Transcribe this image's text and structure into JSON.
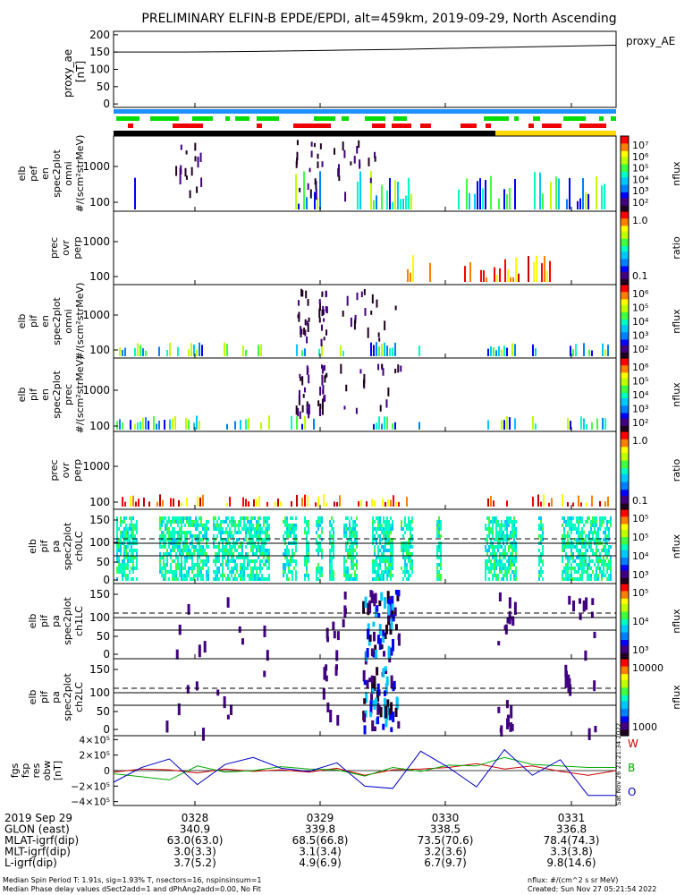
{
  "title": "PRELIMINARY ELFIN-B EPDE/EPDI, alt=459km, 2019-09-29, North Ascending",
  "chart_data": [
    {
      "type": "line",
      "name": "proxy_ae",
      "ylabel": "proxy_ae\n[nT]",
      "series": [
        {
          "name": "proxy_AE",
          "x_minutes": [
            0,
            5,
            10,
            15,
            20,
            25,
            30,
            35
          ],
          "values": [
            150,
            150,
            152,
            155,
            158,
            162,
            166,
            170
          ]
        }
      ],
      "ylim": [
        -10,
        210
      ],
      "ytick_labels": [
        "200",
        "150",
        "100",
        "50",
        "0"
      ],
      "legend": "proxy_AE"
    },
    {
      "type": "heatmap",
      "name": "elb_pef_en_spec2plot_omni",
      "ylabel": [
        "elb",
        "pef",
        "en",
        "spec2plot",
        "omni",
        "#/(scm²strMeV)"
      ],
      "ytick_labels": [
        "1000",
        "100"
      ],
      "colorbar": {
        "label": "nflux",
        "ticks": [
          "10⁷",
          "10⁶",
          "10⁵",
          "10⁴",
          "10³",
          "10²"
        ]
      }
    },
    {
      "type": "heatmap",
      "name": "prec_ovr_perp_1",
      "ylabel": [
        "prec",
        "ovr",
        "perp"
      ],
      "ytick_labels": [
        "1000",
        "100"
      ],
      "colorbar": {
        "label": "ratio",
        "ticks": [
          "1.0",
          "0.1"
        ]
      }
    },
    {
      "type": "heatmap",
      "name": "elb_pif_en_spec2plot_omni",
      "ylabel": [
        "elb",
        "pif",
        "en",
        "spec2plot",
        "omni",
        "#/(scm²strMeV)"
      ],
      "ytick_labels": [
        "1000",
        "100"
      ],
      "colorbar": {
        "label": "nflux",
        "ticks": [
          "10⁶",
          "10⁵",
          "10⁴",
          "10³",
          "10²"
        ]
      }
    },
    {
      "type": "heatmap",
      "name": "elb_pif_en_spec2plot_prec",
      "ylabel": [
        "elb",
        "pif",
        "en",
        "spec2plot",
        "prec",
        "#/(scm²strMeV)"
      ],
      "ytick_labels": [
        "1000",
        "100"
      ],
      "colorbar": {
        "label": "nflux",
        "ticks": [
          "10⁶",
          "10⁵",
          "10⁴",
          "10³",
          "10²"
        ]
      }
    },
    {
      "type": "heatmap",
      "name": "prec_ovr_perp_2",
      "ylabel": [
        "prec",
        "ovr",
        "perp"
      ],
      "ytick_labels": [
        "1000",
        "100"
      ],
      "colorbar": {
        "label": "ratio",
        "ticks": [
          "1.0",
          "0.1"
        ]
      }
    },
    {
      "type": "heatmap",
      "name": "elb_pif_pa_spec2plot_ch0LC",
      "ylabel": [
        "elb",
        "pif",
        "pa",
        "spec2plot",
        "ch0LC"
      ],
      "ytick_labels": [
        "150",
        "100",
        "50",
        "0"
      ],
      "colorbar": {
        "label": "nflux",
        "ticks": [
          "10⁵",
          "10⁵",
          "10⁴",
          "10³"
        ]
      }
    },
    {
      "type": "heatmap",
      "name": "elb_pif_pa_spec2plot_ch1LC",
      "ylabel": [
        "elb",
        "pif",
        "pa",
        "spec2plot",
        "ch1LC"
      ],
      "ytick_labels": [
        "150",
        "100",
        "50",
        "0"
      ],
      "colorbar": {
        "label": "nflux",
        "ticks": [
          "10⁵",
          "10⁴",
          "10³"
        ]
      }
    },
    {
      "type": "heatmap",
      "name": "elb_pif_pa_spec2plot_ch2LC",
      "ylabel": [
        "elb",
        "pif",
        "pa",
        "spec2plot",
        "ch2LC"
      ],
      "ytick_labels": [
        "150",
        "100",
        "50",
        "0"
      ],
      "colorbar": {
        "label": "nflux",
        "ticks": [
          "10000",
          "1000"
        ]
      }
    },
    {
      "type": "line",
      "name": "fgs_fsp_res_obw",
      "ylabel": [
        "fgs",
        "fsp",
        "res",
        "obw",
        "[nT]"
      ],
      "ytick_labels": [
        "4×10⁵",
        "2×10⁵",
        "0",
        "−2×10⁵",
        "−4×10⁵"
      ],
      "ylim": [
        -450000,
        450000
      ],
      "legend": [
        "W",
        "B",
        "O"
      ],
      "series_colors": [
        "#cc0000",
        "#00aa00",
        "#0000cc"
      ],
      "series": [
        {
          "name": "W",
          "values": [
            -20000,
            20000,
            10000,
            -30000,
            20000,
            -10000,
            10000,
            -20000,
            30000,
            -60000,
            10000,
            20000,
            40000,
            90000,
            20000,
            60000,
            -10000,
            -60000,
            0
          ]
        },
        {
          "name": "B",
          "values": [
            -40000,
            -80000,
            -120000,
            60000,
            -20000,
            0,
            50000,
            20000,
            10000,
            -70000,
            40000,
            -10000,
            70000,
            60000,
            170000,
            80000,
            60000,
            40000,
            40000
          ]
        },
        {
          "name": "O",
          "values": [
            -150000,
            40000,
            150000,
            -180000,
            80000,
            170000,
            30000,
            -10000,
            100000,
            -200000,
            -230000,
            250000,
            40000,
            -210000,
            270000,
            -60000,
            140000,
            -320000,
            -320000
          ]
        }
      ]
    }
  ],
  "timebar": {
    "label": "",
    "colors": [
      "#1e90ff",
      "#00dd00",
      "#ee0000",
      "#000000",
      "#ffd700"
    ]
  },
  "stamp": "Sat Nov 26 21:21:34 2022",
  "xaxis": {
    "ticks": [
      "0328",
      "0329",
      "0330",
      "0331"
    ],
    "rows": [
      {
        "label": "2019 Sep 29",
        "values": [
          "0328",
          "0329",
          "0330",
          "0331"
        ]
      },
      {
        "label": "GLON (east)",
        "values": [
          "340.9",
          "339.8",
          "338.5",
          "336.8"
        ]
      },
      {
        "label": "MLAT-igrf(dip)",
        "values": [
          "63.0(63.0)",
          "68.5(66.8)",
          "73.5(70.6)",
          "78.4(74.3)"
        ]
      },
      {
        "label": "MLT-igrf(dip)",
        "values": [
          "3.0(3.3)",
          "3.1(3.4)",
          "3.2(3.6)",
          "3.3(3.8)"
        ]
      },
      {
        "label": "L-igrf(dip)",
        "values": [
          "3.7(5.2)",
          "4.9(6.9)",
          "6.7(9.7)",
          "9.8(14.6)"
        ]
      }
    ]
  },
  "footer": {
    "line1": "Median Spin Period T: 1.91s, sig=1.93% T, nsectors=16, nspinsinsum=1",
    "line2": "Median Phase delay values dSect2add=1 and dPhAng2add=0.00, No Fit",
    "right1": "nflux: #/(cm^2 s sr MeV)",
    "right2": "Created: Sun Nov 27 05:21:54 2022"
  }
}
